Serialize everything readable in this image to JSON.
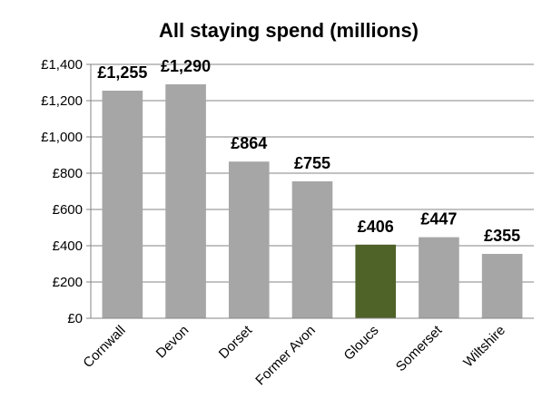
{
  "chart_data": {
    "type": "bar",
    "title": "All staying spend (millions)",
    "categories": [
      "Cornwall",
      "Devon",
      "Dorset",
      "Former Avon",
      "Gloucs",
      "Somerset",
      "Wiltshire"
    ],
    "values": [
      1255,
      1290,
      864,
      755,
      406,
      447,
      355
    ],
    "data_labels": [
      "£1,255",
      "£1,290",
      "£864",
      "£755",
      "£406",
      "£447",
      "£355"
    ],
    "y_ticks": [
      0,
      200,
      400,
      600,
      800,
      1000,
      1200,
      1400
    ],
    "y_tick_labels": [
      "£0",
      "£200",
      "£400",
      "£600",
      "£800",
      "£1,000",
      "£1,200",
      "£1,400"
    ],
    "ylim": [
      0,
      1400
    ],
    "grid": true,
    "legend": "none",
    "highlight_category": "Gloucs",
    "colors": {
      "bar": "#a6a6a6",
      "highlight": "#4f6228",
      "grid": "#868686",
      "axis": "#868686"
    }
  }
}
